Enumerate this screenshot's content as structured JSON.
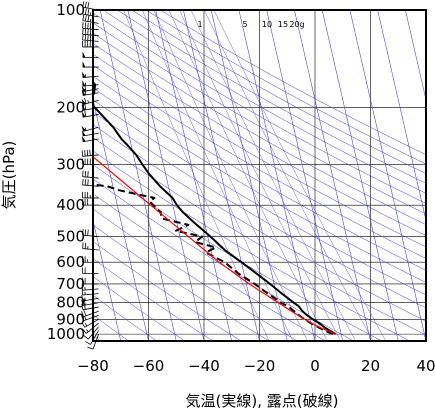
{
  "chart_data": {
    "type": "line",
    "title": "",
    "xlabel": "気温(実線), 露点(破線)",
    "ylabel": "気圧(hPa)",
    "xlim": [
      -80,
      40
    ],
    "ylim": [
      1050,
      100
    ],
    "y_scale": "log",
    "x_ticks": [
      "−80",
      "−60",
      "−40",
      "−20",
      "0",
      "20",
      "40"
    ],
    "y_ticks": [
      "100",
      "200",
      "300",
      "400",
      "500",
      "600",
      "700",
      "800",
      "900",
      "1000"
    ],
    "mixing_ratio_labels": [
      "1",
      "5",
      "10",
      "15",
      "20g"
    ],
    "series": [
      {
        "role": "temperature",
        "style": "solid",
        "color": "#000000",
        "pressure": [
          1000,
          980,
          960,
          925,
          900,
          870,
          850,
          820,
          800,
          750,
          700,
          650,
          600,
          550,
          500,
          450,
          420,
          400,
          380,
          350,
          320,
          300,
          280,
          260,
          250,
          230,
          200,
          190,
          180,
          170,
          160,
          150,
          140,
          130,
          120,
          110,
          105,
          100
        ],
        "temp": [
          8,
          6.5,
          5,
          3,
          1,
          -1,
          -2,
          -3,
          -4.5,
          -8,
          -11.5,
          -15.5,
          -20,
          -25,
          -29,
          -34,
          -37,
          -38.5,
          -39.5,
          -43,
          -46,
          -47.5,
          -49,
          -51.5,
          -53,
          -55,
          -60,
          -61,
          -59,
          -58,
          -60,
          -61,
          -60,
          -62,
          -63,
          -61,
          -60.5,
          -61
        ]
      },
      {
        "role": "dewpoint",
        "style": "dashed",
        "color": "#000000",
        "pressure": [
          1000,
          980,
          960,
          925,
          900,
          870,
          850,
          820,
          800,
          750,
          700,
          650,
          600,
          560,
          540,
          520,
          500,
          480,
          460,
          440,
          420,
          400,
          390,
          380,
          370,
          360,
          350,
          345,
          340,
          335,
          330
        ],
        "temp": [
          7,
          5,
          3,
          0,
          -2,
          -4,
          -5,
          -7,
          -9,
          -13,
          -17,
          -22,
          -26,
          -32,
          -28,
          -35,
          -32,
          -41,
          -36,
          -45,
          -45,
          -47,
          -48,
          -46,
          -52,
          -58,
          -62,
          -68,
          -72,
          -75,
          -78
        ]
      },
      {
        "role": "parcel",
        "style": "solid",
        "color": "#ff0000",
        "pressure": [
          1000,
          950,
          900,
          850,
          800,
          700,
          600,
          500,
          400,
          300,
          250,
          200
        ],
        "temp": [
          8,
          2.5,
          -2,
          -6,
          -10,
          -19,
          -28,
          -37,
          -48,
          -62,
          -71,
          -82
        ]
      }
    ],
    "wind_barbs": {
      "x_position": -78,
      "pressure": [
        1000,
        975,
        950,
        925,
        900,
        875,
        850,
        825,
        800,
        775,
        750,
        725,
        700,
        650,
        600,
        550,
        500,
        400,
        380,
        350,
        330,
        300,
        280,
        250,
        240,
        230,
        210,
        200,
        190,
        180,
        175,
        170,
        160,
        150,
        140,
        130,
        125,
        120,
        115,
        110,
        105,
        100
      ],
      "speed_kt": [
        10,
        10,
        10,
        15,
        15,
        15,
        20,
        20,
        20,
        15,
        15,
        15,
        20,
        20,
        25,
        25,
        30,
        30,
        35,
        30,
        30,
        40,
        45,
        50,
        50,
        55,
        60,
        60,
        65,
        60,
        60,
        55,
        55,
        50,
        50,
        45,
        45,
        40,
        40,
        35,
        35,
        30
      ],
      "direction_deg": [
        200,
        210,
        220,
        230,
        240,
        250,
        250,
        260,
        260,
        260,
        265,
        265,
        270,
        270,
        270,
        275,
        275,
        270,
        270,
        275,
        275,
        270,
        265,
        260,
        260,
        255,
        260,
        260,
        255,
        260,
        260,
        265,
        265,
        270,
        270,
        270,
        275,
        275,
        275,
        280,
        280,
        280
      ]
    },
    "grid": true,
    "legend": "none"
  }
}
